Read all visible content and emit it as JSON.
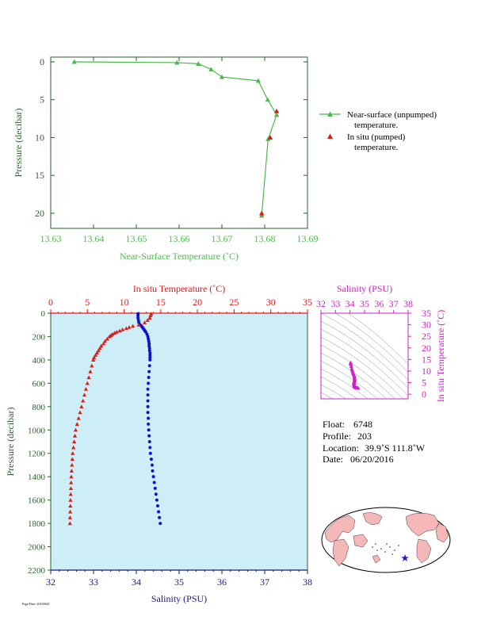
{
  "colors": {
    "green": "#4cb84c",
    "red": "#e01818",
    "blue": "#1010d0",
    "magenta": "#d020c8",
    "navy": "#1a1a7a",
    "darkgreen": "#2e5e2e",
    "panel_bg": "#cdeef6",
    "land": "#f4b8b8"
  },
  "chart_data": [
    {
      "type": "line",
      "name": "near-surface",
      "xlabel": "Near-Surface Temperature (˚C)",
      "ylabel": "Pressure (decibar)",
      "xlim": [
        13.63,
        13.69
      ],
      "ylim": [
        0,
        22
      ],
      "y_inverted": true,
      "xticks": [
        "13.63",
        "13.64",
        "13.65",
        "13.66",
        "13.67",
        "13.68",
        "13.69"
      ],
      "yticks": [
        "0",
        "5",
        "10",
        "15",
        "20"
      ],
      "series": [
        {
          "name": "Near-surface (unpumped) temperature.",
          "marker": "triangle",
          "x": [
            13.6355,
            13.6595,
            13.6645,
            13.6675,
            13.67,
            13.6785,
            13.6807,
            13.6828,
            13.6808,
            13.6793
          ],
          "y": [
            0.0,
            0.1,
            0.25,
            1.0,
            2.0,
            2.5,
            5.0,
            7.0,
            10.2,
            20.3
          ]
        },
        {
          "name": "In situ (pumped) temperature.",
          "marker": "triangle",
          "x": [
            13.6828,
            13.6813,
            13.6793
          ],
          "y": [
            6.5,
            10.0,
            20.0
          ]
        }
      ]
    },
    {
      "type": "scatter",
      "name": "profile",
      "xlabel_bottom": "Salinity (PSU)",
      "xlabel_top": "In situ Temperature (˚C)",
      "ylabel": "Pressure (decibar)",
      "salinity_lim": [
        32,
        38
      ],
      "temperature_lim": [
        0,
        35
      ],
      "pressure_lim": [
        0,
        2200
      ],
      "y_inverted": true,
      "salinity_ticks": [
        "32",
        "33",
        "34",
        "35",
        "36",
        "37",
        "38"
      ],
      "temperature_ticks": [
        "0",
        "5",
        "10",
        "15",
        "20",
        "25",
        "30",
        "35"
      ],
      "pressure_ticks": [
        "0",
        "200",
        "400",
        "600",
        "800",
        "1000",
        "1200",
        "1400",
        "1600",
        "1800",
        "2000",
        "2200"
      ],
      "series": [
        {
          "name": "Temperature",
          "marker": "triangle",
          "pressure": [
            5,
            20,
            40,
            60,
            80,
            100,
            110,
            120,
            130,
            140,
            150,
            160,
            170,
            180,
            190,
            200,
            220,
            240,
            260,
            280,
            300,
            320,
            340,
            360,
            380,
            400,
            450,
            500,
            550,
            600,
            650,
            700,
            750,
            800,
            850,
            900,
            950,
            1000,
            1050,
            1100,
            1150,
            1200,
            1250,
            1300,
            1350,
            1400,
            1450,
            1500,
            1550,
            1600,
            1650,
            1700,
            1750,
            1800
          ],
          "values": [
            13.7,
            13.6,
            13.5,
            13.2,
            12.8,
            12.0,
            11.2,
            10.7,
            10.3,
            9.8,
            9.4,
            9.0,
            8.7,
            8.4,
            8.2,
            8.0,
            7.7,
            7.4,
            7.2,
            6.9,
            6.7,
            6.5,
            6.3,
            6.1,
            5.9,
            5.8,
            5.6,
            5.4,
            5.2,
            5.0,
            4.8,
            4.6,
            4.4,
            4.2,
            4.0,
            3.8,
            3.6,
            3.4,
            3.3,
            3.2,
            3.1,
            3.0,
            2.95,
            2.9,
            2.85,
            2.8,
            2.78,
            2.75,
            2.73,
            2.7,
            2.68,
            2.66,
            2.64,
            2.62
          ]
        },
        {
          "name": "Salinity",
          "marker": "circle",
          "pressure": [
            5,
            20,
            40,
            60,
            80,
            100,
            110,
            120,
            130,
            140,
            150,
            160,
            180,
            200,
            220,
            240,
            260,
            280,
            300,
            320,
            340,
            360,
            380,
            400,
            450,
            500,
            550,
            600,
            650,
            700,
            750,
            800,
            850,
            900,
            950,
            1000,
            1050,
            1100,
            1150,
            1200,
            1250,
            1300,
            1350,
            1400,
            1450,
            1500,
            1550,
            1600,
            1650,
            1700,
            1750,
            1800
          ],
          "values": [
            34.04,
            34.04,
            34.04,
            34.05,
            34.06,
            34.09,
            34.12,
            34.14,
            34.16,
            34.18,
            34.2,
            34.22,
            34.25,
            34.27,
            34.28,
            34.29,
            34.3,
            34.3,
            34.31,
            34.31,
            34.32,
            34.32,
            34.32,
            34.32,
            34.31,
            34.3,
            34.29,
            34.28,
            34.27,
            34.27,
            34.27,
            34.27,
            34.27,
            34.28,
            34.28,
            34.29,
            34.3,
            34.31,
            34.32,
            34.33,
            34.35,
            34.37,
            34.38,
            34.4,
            34.42,
            34.44,
            34.46,
            34.48,
            34.5,
            34.52,
            34.54,
            34.56
          ]
        }
      ]
    },
    {
      "type": "scatter",
      "name": "ts-diagram",
      "xlabel": "Salinity (PSU)",
      "ylabel": "In situ Temperature (˚C)",
      "xlim": [
        32,
        38
      ],
      "ylim": [
        -2,
        35
      ],
      "xticks": [
        "32",
        "33",
        "34",
        "35",
        "36",
        "37",
        "38"
      ],
      "yticks": [
        "0",
        "5",
        "10",
        "15",
        "20",
        "25",
        "30",
        "35"
      ]
    }
  ],
  "legend": {
    "item1_line1": "Near-surface (unpumped)",
    "item1_line2": "temperature.",
    "item2_line1": "In situ (pumped)",
    "item2_line2": "temperature."
  },
  "info": {
    "float_label": "Float:",
    "float_value": "6748",
    "profile_label": "Profile:",
    "profile_value": "203",
    "location_label": "Location:",
    "location_value": "39.9˚S  111.8˚W",
    "date_label": "Date:",
    "date_value": "06/20/2016"
  },
  "footer_code": "Page/Date: 20160620"
}
